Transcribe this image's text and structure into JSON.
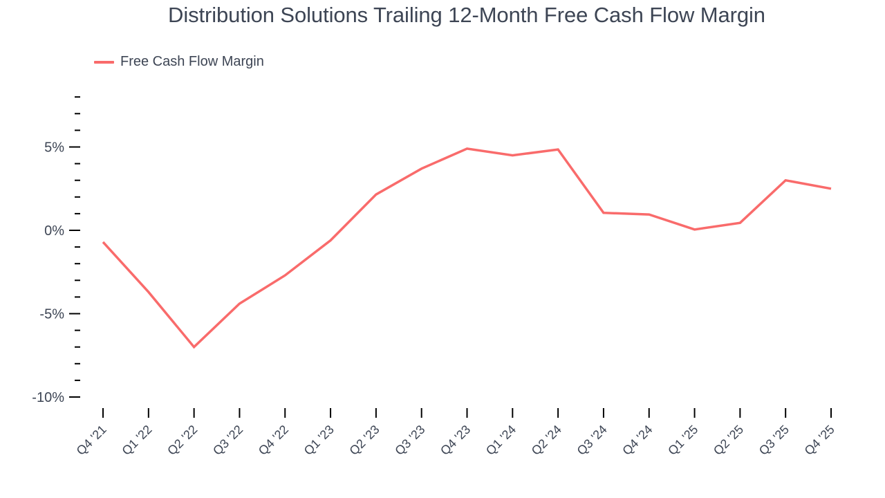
{
  "header": {
    "title": "Distribution Solutions Trailing 12-Month Free Cash Flow Margin"
  },
  "legend": {
    "items": [
      {
        "label": "Free Cash Flow Margin",
        "color": "#f96b6b"
      }
    ]
  },
  "colors": {
    "line": "#f96b6b",
    "text": "#3d4554",
    "axis": "#000000"
  },
  "chart_data": {
    "type": "line",
    "title": "Distribution Solutions Trailing 12-Month Free Cash Flow Margin",
    "xlabel": "",
    "ylabel": "",
    "categories": [
      "Q4 '21",
      "Q1 '22",
      "Q2 '22",
      "Q3 '22",
      "Q4 '22",
      "Q1 '23",
      "Q2 '23",
      "Q3 '23",
      "Q4 '23",
      "Q1 '24",
      "Q2 '24",
      "Q3 '24",
      "Q4 '24",
      "Q1 '25",
      "Q2 '25",
      "Q3 '25",
      "Q4 '25"
    ],
    "series": [
      {
        "name": "Free Cash Flow Margin",
        "color": "#f96b6b",
        "values": [
          -0.7,
          -3.7,
          -7.0,
          -4.4,
          -2.7,
          -0.6,
          2.15,
          3.7,
          4.9,
          4.5,
          4.85,
          1.05,
          0.95,
          0.05,
          0.45,
          3.0,
          2.5
        ]
      }
    ],
    "y_ticks": [
      5,
      0,
      -5,
      -10
    ],
    "y_tick_labels": [
      "5%",
      "0%",
      "-5%",
      "-10%"
    ],
    "y_minor_step": 1,
    "ylim": [
      -10,
      8
    ],
    "grid": false,
    "legend_position": "top-left"
  }
}
